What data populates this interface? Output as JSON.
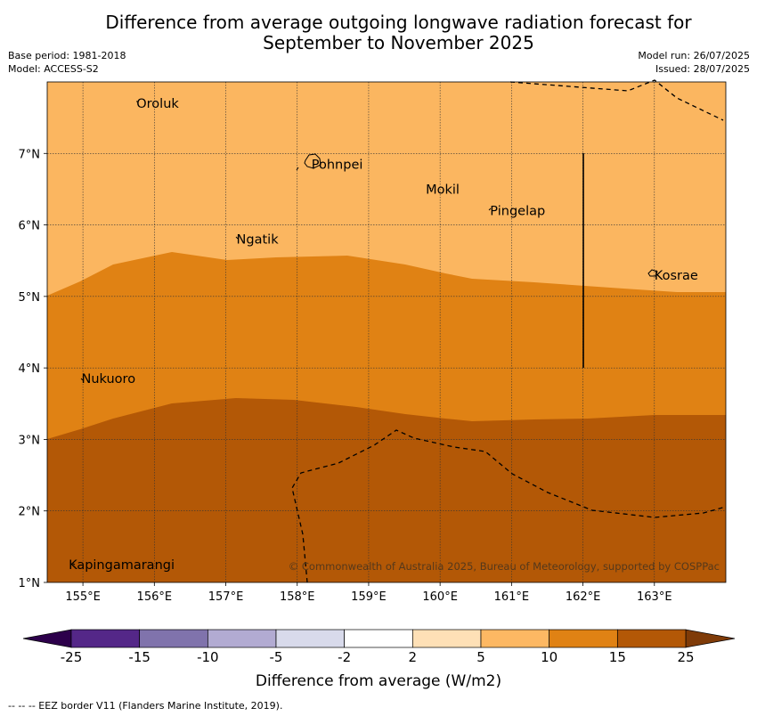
{
  "header": {
    "title_line1": "Difference from average outgoing longwave radiation forecast for",
    "title_line2": "September to November 2025",
    "base_period": "Base period: 1981-2018",
    "model": "Model: ACCESS-S2",
    "model_run": "Model run: 26/07/2025",
    "issued": "Issued: 28/07/2025"
  },
  "map": {
    "lon_range": [
      154.5,
      164.0
    ],
    "lat_range": [
      1.0,
      8.0
    ],
    "lon_ticks": [
      "155°E",
      "156°E",
      "157°E",
      "158°E",
      "159°E",
      "160°E",
      "161°E",
      "162°E",
      "163°E"
    ],
    "lat_ticks": [
      "1°N",
      "2°N",
      "3°N",
      "4°N",
      "5°N",
      "6°N",
      "7°N"
    ],
    "grid": true,
    "places": [
      {
        "name": "Oroluk",
        "lon": 155.75,
        "lat": 7.7
      },
      {
        "name": "Pohnpei",
        "lon": 158.2,
        "lat": 6.85
      },
      {
        "name": "Mokil",
        "lon": 159.8,
        "lat": 6.5
      },
      {
        "name": "Pingelap",
        "lon": 160.7,
        "lat": 6.2
      },
      {
        "name": "Ngatik",
        "lon": 157.15,
        "lat": 5.8
      },
      {
        "name": "Kosrae",
        "lon": 163.0,
        "lat": 5.3
      },
      {
        "name": "Nukuoro",
        "lon": 154.98,
        "lat": 3.85
      },
      {
        "name": "Kapingamarangi",
        "lon": 154.8,
        "lat": 1.25
      }
    ],
    "colors": {
      "light_orange": "#fbb660",
      "mid_orange": "#e08214",
      "dark_orange": "#b35806"
    },
    "copyright": "© Commonwealth of Australia 2025, Bureau of Meteorology, supported by COSPPac"
  },
  "colorbar": {
    "title": "Difference from average (W/m2)",
    "labels": [
      "-25",
      "-15",
      "-10",
      "-5",
      "-2",
      "2",
      "5",
      "10",
      "15",
      "25"
    ],
    "colors": [
      "#542788",
      "#8073ac",
      "#b2abd2",
      "#d8daeb",
      "#ffffff",
      "#fee0b6",
      "#fdb863",
      "#e08214",
      "#b35806"
    ],
    "under_color": "#2d004b",
    "over_color": "#7f3b08"
  },
  "footnote": "--  --  -- EEZ border V11 (Flanders Marine Institute, 2019)."
}
